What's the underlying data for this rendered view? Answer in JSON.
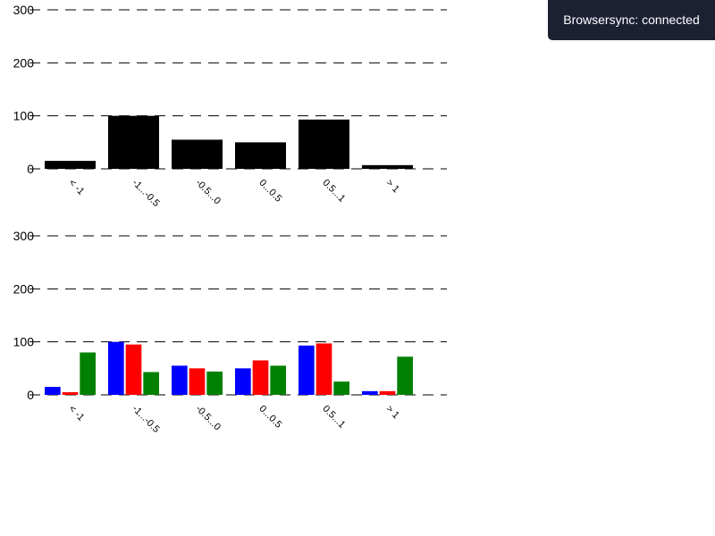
{
  "browsersync": {
    "message": "Browsersync: connected"
  },
  "colors": {
    "single_series": "#000000",
    "series_1": "#0000ff",
    "series_2": "#ff0000",
    "series_3": "#008000",
    "toast_bg": "#1c2033",
    "toast_text": "#ffffff"
  },
  "chart_data": [
    {
      "type": "bar",
      "categories": [
        "< -1",
        "-1...-0.5",
        "-0.5...0",
        "0...0.5",
        "0.5...1",
        "> 1"
      ],
      "series": [
        {
          "values": [
            15,
            100,
            55,
            50,
            93,
            7
          ]
        }
      ],
      "yticks": [
        0,
        100,
        200,
        300
      ],
      "ylim": [
        0,
        300
      ],
      "grid": true,
      "grid_style": "dashed",
      "title": "",
      "xlabel": "",
      "ylabel": ""
    },
    {
      "type": "bar",
      "categories": [
        "< -1",
        "-1...-0.5",
        "-0.5...0",
        "0...0.5",
        "0.5...1",
        "> 1"
      ],
      "series": [
        {
          "values": [
            15,
            100,
            55,
            50,
            93,
            7
          ]
        },
        {
          "values": [
            5,
            95,
            50,
            65,
            97,
            7
          ]
        },
        {
          "values": [
            80,
            43,
            44,
            55,
            25,
            72
          ]
        }
      ],
      "yticks": [
        0,
        100,
        200,
        300
      ],
      "ylim": [
        0,
        300
      ],
      "grid": true,
      "grid_style": "dashed",
      "title": "",
      "xlabel": "",
      "ylabel": ""
    }
  ]
}
